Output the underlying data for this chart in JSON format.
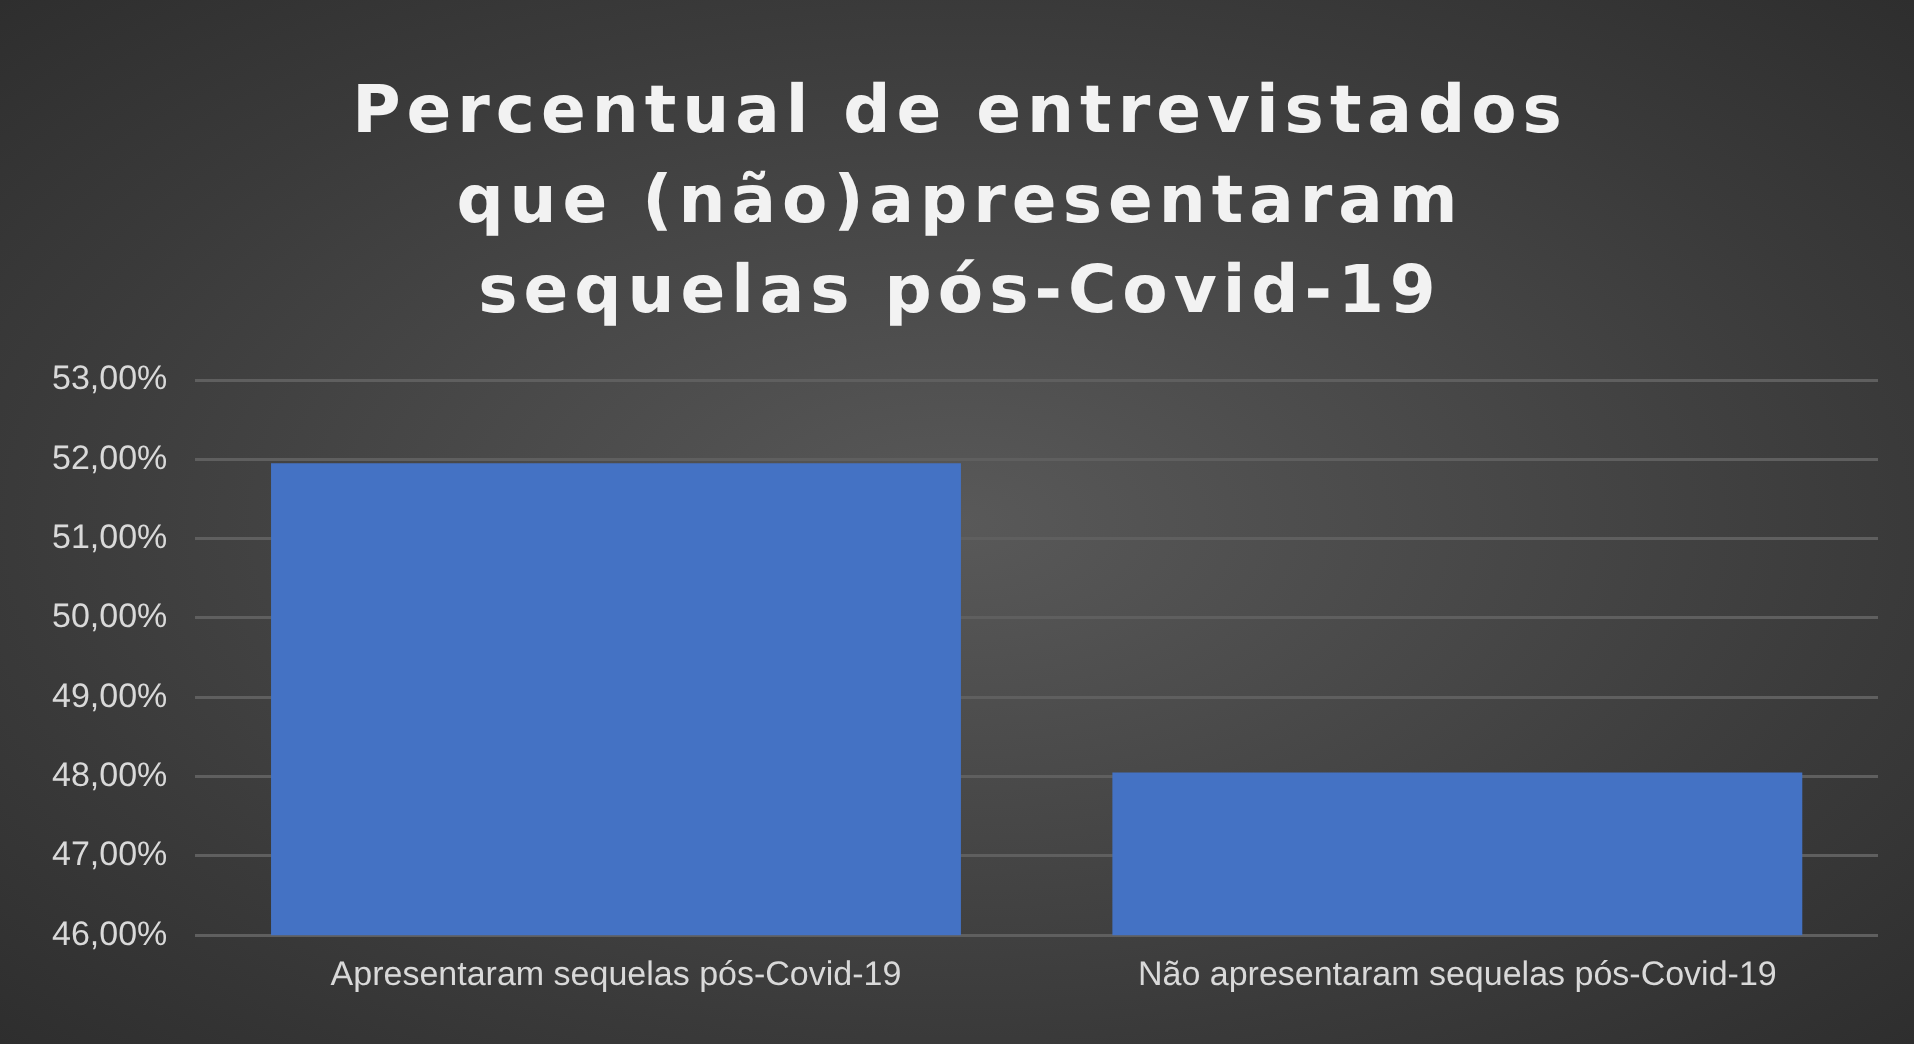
{
  "chart_data": {
    "type": "bar",
    "title": "Percentual de entrevistados que (não)apresentaram sequelas pós-Covid-19",
    "categories": [
      "Apresentaram sequelas pós-Covid-19",
      "Não apresentaram sequelas pós-Covid-19"
    ],
    "values": [
      51.95,
      48.05
    ],
    "color": "#4472c4",
    "ylim": [
      46,
      53
    ],
    "yticks": [
      {
        "value": 46,
        "label": "46,00%"
      },
      {
        "value": 47,
        "label": "47,00%"
      },
      {
        "value": 48,
        "label": "48,00%"
      },
      {
        "value": 49,
        "label": "49,00%"
      },
      {
        "value": 50,
        "label": "50,00%"
      },
      {
        "value": 51,
        "label": "51,00%"
      },
      {
        "value": 52,
        "label": "52,00%"
      },
      {
        "value": 53,
        "label": "53,00%"
      }
    ],
    "grid": "y",
    "legend": false
  }
}
